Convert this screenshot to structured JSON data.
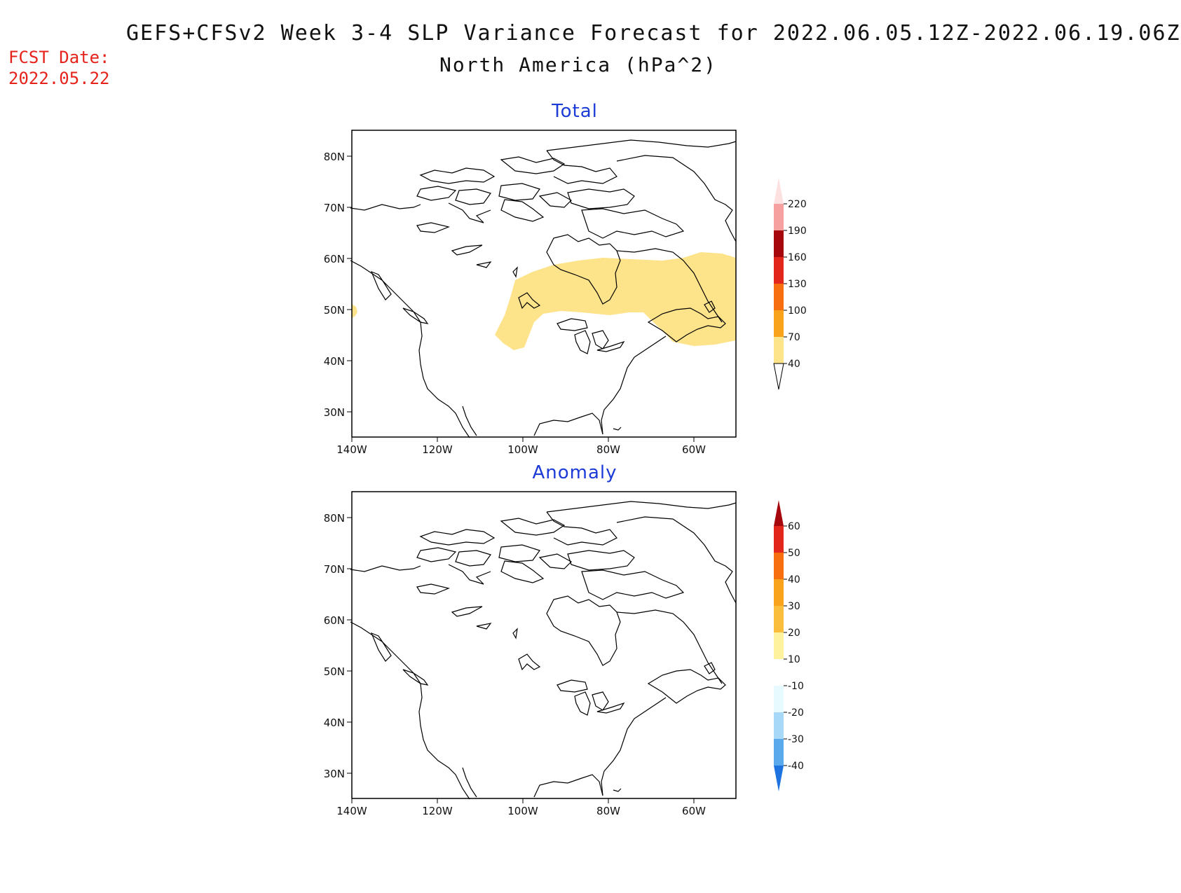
{
  "title": "GEFS+CFSv2 Week 3-4 SLP Variance Forecast for 2022.06.05.12Z-2022.06.19.06Z",
  "subtitle": "North America (hPa^2)",
  "fcst_label": "FCST Date:",
  "fcst_date": "2022.05.22",
  "panels": [
    {
      "title": "Total",
      "lat_labels": [
        "80N",
        "70N",
        "60N",
        "50N",
        "40N",
        "30N"
      ],
      "lon_labels": [
        "140W",
        "120W",
        "100W",
        "80W",
        "60W"
      ],
      "shaded_band": {
        "range": "40-70",
        "color": "#fde38a"
      }
    },
    {
      "title": "Anomaly",
      "lat_labels": [
        "80N",
        "70N",
        "60N",
        "50N",
        "40N",
        "30N"
      ],
      "lon_labels": [
        "140W",
        "120W",
        "100W",
        "80W",
        "60W"
      ]
    }
  ],
  "colorbar_total": {
    "levels": [
      "40",
      "70",
      "100",
      "130",
      "160",
      "190",
      "220"
    ],
    "colors": [
      "#fde38a",
      "#f9a21b",
      "#f76e10",
      "#e3261c",
      "#a6070c",
      "#f6a0a0",
      "#fde0e0"
    ]
  },
  "colorbar_anomaly": {
    "levels": [
      "60",
      "50",
      "40",
      "30",
      "20",
      "10",
      "-10",
      "-20",
      "-30",
      "-40"
    ],
    "colors_top_to_bottom": [
      "#a6070c",
      "#e3261c",
      "#f76e10",
      "#f9a21b",
      "#fbbd3c",
      "#fff29f",
      "#ffffff",
      "#e6faff",
      "#a7d8f7",
      "#5aa9ec",
      "#1e73e0"
    ]
  }
}
